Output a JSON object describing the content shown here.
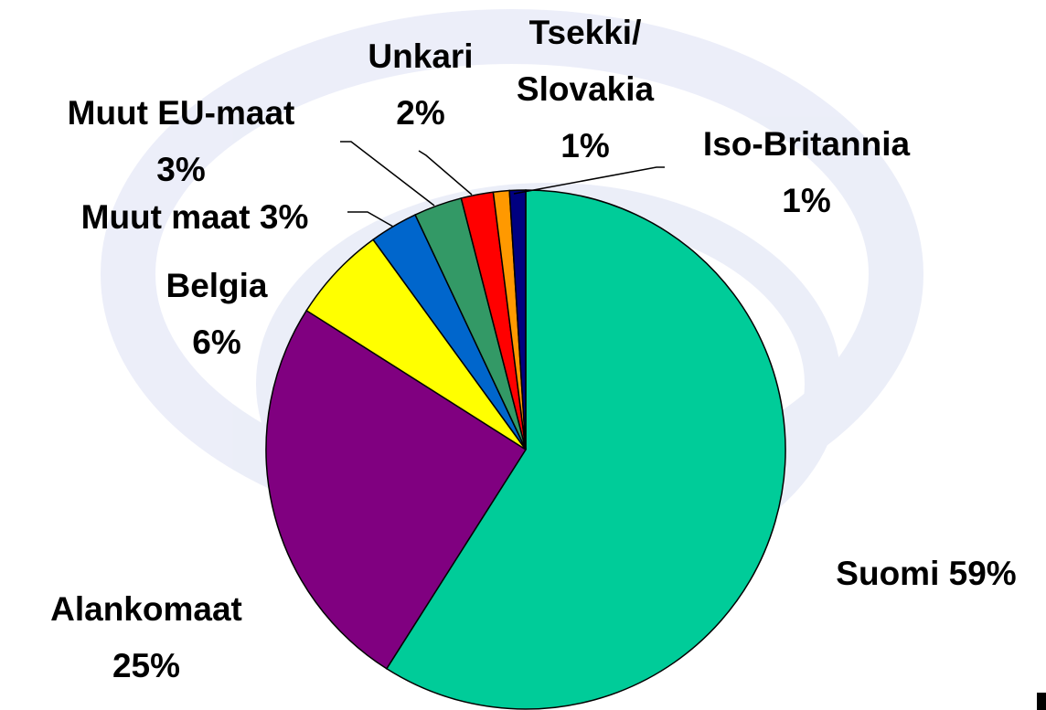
{
  "chart_data": {
    "type": "pie",
    "categories": [
      "Suomi",
      "Alankomaat",
      "Belgia",
      "Muut maat",
      "Muut EU-maat",
      "Unkari",
      "Tsekki/ Slovakia",
      "Iso-Britannia"
    ],
    "values": [
      59,
      25,
      6,
      3,
      3,
      2,
      1,
      1
    ],
    "value_labels": [
      "59%",
      "25%",
      "6%",
      "3%",
      "3%",
      "2%",
      "1%",
      "1%"
    ],
    "colors": [
      "#00cc99",
      "#800080",
      "#ffff00",
      "#0066cc",
      "#339966",
      "#ff0000",
      "#ff9900",
      "#000080"
    ]
  }
}
